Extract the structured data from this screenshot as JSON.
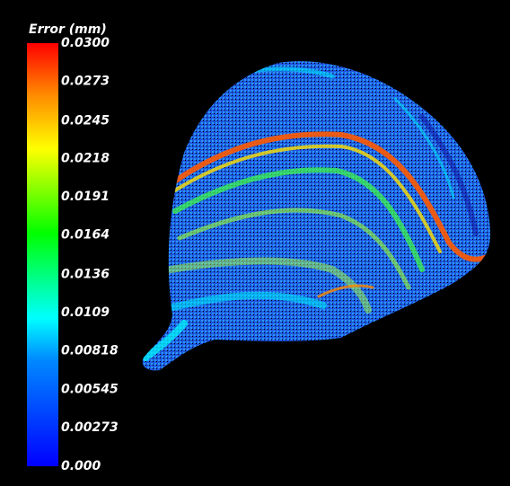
{
  "colorbar": {
    "title": "Error (mm)",
    "lim": [
      0,
      0.03
    ],
    "ticks": [
      {
        "value": 0.03,
        "label": "0.0300"
      },
      0.0273,
      0.0245,
      0.0218,
      0.0191,
      0.0164,
      0.0136,
      0.0109,
      0.00818,
      0.00545,
      0.00273,
      {
        "value": 0,
        "label": "0.000"
      }
    ]
  }
}
